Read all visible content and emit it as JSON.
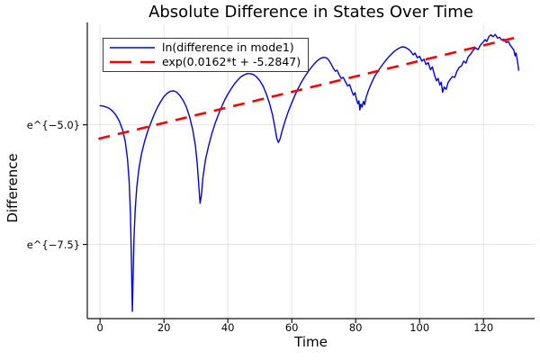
{
  "chart_data": {
    "type": "line",
    "title": "Absolute Difference in States Over Time",
    "xlabel": "Time",
    "ylabel": "Difference",
    "grid": true,
    "legend_position": "top-left",
    "x_range": [
      -4,
      136
    ],
    "y_range_ln": [
      -9.05,
      -2.9
    ],
    "x_ticks": [
      0,
      20,
      40,
      60,
      80,
      100,
      120
    ],
    "x_tick_labels": [
      "0",
      "20",
      "40",
      "60",
      "80",
      "100",
      "120"
    ],
    "y_ticks": [
      {
        "value": -5.0,
        "label": "e^{−5.0}"
      },
      {
        "value": -7.5,
        "label": "e^{−7.5}"
      }
    ],
    "series": [
      {
        "name": "ln(difference in mode1)",
        "color": "#0000ee",
        "style": "solid",
        "points": [
          [
            0,
            -4.6
          ],
          [
            1,
            -4.61
          ],
          [
            2,
            -4.63
          ],
          [
            3,
            -4.66
          ],
          [
            4,
            -4.72
          ],
          [
            5,
            -4.8
          ],
          [
            6,
            -4.92
          ],
          [
            7,
            -5.1
          ],
          [
            7.9,
            -5.35
          ],
          [
            8.6,
            -5.72
          ],
          [
            9.1,
            -6.18
          ],
          [
            9.5,
            -6.85
          ],
          [
            9.8,
            -7.8
          ],
          [
            10,
            -8.55
          ],
          [
            10.1,
            -8.9
          ],
          [
            10.3,
            -8.25
          ],
          [
            10.6,
            -7.4
          ],
          [
            11,
            -6.75
          ],
          [
            11.5,
            -6.3
          ],
          [
            12.2,
            -5.9
          ],
          [
            13,
            -5.6
          ],
          [
            14,
            -5.33
          ],
          [
            15,
            -5.12
          ],
          [
            16,
            -4.94
          ],
          [
            17,
            -4.77
          ],
          [
            18,
            -4.63
          ],
          [
            19,
            -4.51
          ],
          [
            20,
            -4.41
          ],
          [
            21,
            -4.34
          ],
          [
            22,
            -4.3
          ],
          [
            23,
            -4.29
          ],
          [
            24,
            -4.32
          ],
          [
            25,
            -4.39
          ],
          [
            26,
            -4.49
          ],
          [
            27,
            -4.63
          ],
          [
            28,
            -4.83
          ],
          [
            29,
            -5.1
          ],
          [
            29.8,
            -5.42
          ],
          [
            30.4,
            -5.8
          ],
          [
            31,
            -6.38
          ],
          [
            31.3,
            -6.64
          ],
          [
            31.7,
            -6.48
          ],
          [
            32.2,
            -6.1
          ],
          [
            33,
            -5.73
          ],
          [
            34,
            -5.43
          ],
          [
            35,
            -5.18
          ],
          [
            36,
            -4.97
          ],
          [
            37,
            -4.79
          ],
          [
            38,
            -4.63
          ],
          [
            39,
            -4.48
          ],
          [
            40,
            -4.36
          ],
          [
            41,
            -4.25
          ],
          [
            42,
            -4.15
          ],
          [
            43,
            -4.07
          ],
          [
            44,
            -4.0
          ],
          [
            45,
            -3.96
          ],
          [
            46,
            -3.93
          ],
          [
            47,
            -3.93
          ],
          [
            48,
            -3.95
          ],
          [
            49,
            -4.0
          ],
          [
            50,
            -4.08
          ],
          [
            51,
            -4.19
          ],
          [
            52,
            -4.35
          ],
          [
            53,
            -4.55
          ],
          [
            54,
            -4.8
          ],
          [
            54.7,
            -5.05
          ],
          [
            55.3,
            -5.28
          ],
          [
            55.8,
            -5.37
          ],
          [
            56.3,
            -5.3
          ],
          [
            57,
            -5.12
          ],
          [
            58,
            -4.9
          ],
          [
            59,
            -4.71
          ],
          [
            60,
            -4.54
          ],
          [
            61,
            -4.38
          ],
          [
            62,
            -4.24
          ],
          [
            63,
            -4.11
          ],
          [
            64,
            -4.0
          ],
          [
            65,
            -3.9
          ],
          [
            66,
            -3.81
          ],
          [
            67,
            -3.73
          ],
          [
            68,
            -3.66
          ],
          [
            69,
            -3.61
          ],
          [
            70,
            -3.59
          ],
          [
            70.8,
            -3.6
          ],
          [
            71.5,
            -3.64
          ],
          [
            72.3,
            -3.73
          ],
          [
            73,
            -3.82
          ],
          [
            73.6,
            -3.88
          ],
          [
            74.2,
            -3.86
          ],
          [
            74.8,
            -3.95
          ],
          [
            75.5,
            -4.03
          ],
          [
            76.1,
            -4.01
          ],
          [
            76.8,
            -4.1
          ],
          [
            77.5,
            -4.19
          ],
          [
            78.1,
            -4.16
          ],
          [
            78.7,
            -4.28
          ],
          [
            79.3,
            -4.38
          ],
          [
            79.8,
            -4.33
          ],
          [
            80.3,
            -4.48
          ],
          [
            80.7,
            -4.56
          ],
          [
            81,
            -4.5
          ],
          [
            81.3,
            -4.69
          ],
          [
            81.6,
            -4.57
          ],
          [
            82,
            -4.63
          ],
          [
            82.4,
            -4.51
          ],
          [
            82.8,
            -4.58
          ],
          [
            83.3,
            -4.42
          ],
          [
            84,
            -4.28
          ],
          [
            85,
            -4.12
          ],
          [
            86,
            -3.98
          ],
          [
            87.5,
            -3.83
          ],
          [
            89,
            -3.69
          ],
          [
            90.5,
            -3.57
          ],
          [
            92,
            -3.47
          ],
          [
            93.5,
            -3.4
          ],
          [
            94.5,
            -3.37
          ],
          [
            95.5,
            -3.38
          ],
          [
            96.5,
            -3.42
          ],
          [
            97.3,
            -3.47
          ],
          [
            98,
            -3.54
          ],
          [
            98.6,
            -3.5
          ],
          [
            99.3,
            -3.6
          ],
          [
            100,
            -3.57
          ],
          [
            100.7,
            -3.67
          ],
          [
            101.4,
            -3.63
          ],
          [
            102,
            -3.74
          ],
          [
            102.7,
            -3.7
          ],
          [
            103.4,
            -3.85
          ],
          [
            104,
            -3.79
          ],
          [
            104.7,
            -3.97
          ],
          [
            105.3,
            -4.08
          ],
          [
            105.8,
            -4.03
          ],
          [
            106.3,
            -4.17
          ],
          [
            106.8,
            -4.11
          ],
          [
            107.2,
            -4.32
          ],
          [
            107.7,
            -4.21
          ],
          [
            108.3,
            -4.26
          ],
          [
            108.9,
            -4.12
          ],
          [
            109.6,
            -4.05
          ],
          [
            110.3,
            -3.99
          ],
          [
            111,
            -4.01
          ],
          [
            111.7,
            -3.88
          ],
          [
            112.4,
            -3.8
          ],
          [
            113.1,
            -3.77
          ],
          [
            113.8,
            -3.67
          ],
          [
            114.5,
            -3.71
          ],
          [
            115.2,
            -3.58
          ],
          [
            116,
            -3.52
          ],
          [
            116.8,
            -3.44
          ],
          [
            117.6,
            -3.39
          ],
          [
            118.3,
            -3.43
          ],
          [
            119,
            -3.34
          ],
          [
            119.8,
            -3.28
          ],
          [
            120.5,
            -3.22
          ],
          [
            121,
            -3.26
          ],
          [
            121.7,
            -3.16
          ],
          [
            122.3,
            -3.12
          ],
          [
            123,
            -3.16
          ],
          [
            123.7,
            -3.11
          ],
          [
            124.4,
            -3.19
          ],
          [
            125,
            -3.17
          ],
          [
            125.7,
            -3.23
          ],
          [
            126.4,
            -3.21
          ],
          [
            127.1,
            -3.28
          ],
          [
            127.8,
            -3.26
          ],
          [
            128.4,
            -3.34
          ],
          [
            129,
            -3.39
          ],
          [
            129.5,
            -3.44
          ],
          [
            129.9,
            -3.56
          ],
          [
            130.2,
            -3.5
          ],
          [
            130.5,
            -3.62
          ],
          [
            130.7,
            -3.7
          ],
          [
            130.9,
            -3.8
          ],
          [
            131,
            -3.86
          ]
        ]
      },
      {
        "name": "exp(0.0162*t + -5.2847)",
        "color": "#ff0000",
        "style": "dash",
        "fit": {
          "slope": 0.0162,
          "intercept": -5.2847,
          "t_start": -0.5,
          "t_end": 131.5
        }
      }
    ],
    "colors": {
      "grid": "rgba(0,0,0,0.10)",
      "spine": "#111111",
      "background": "#ffffff"
    }
  }
}
